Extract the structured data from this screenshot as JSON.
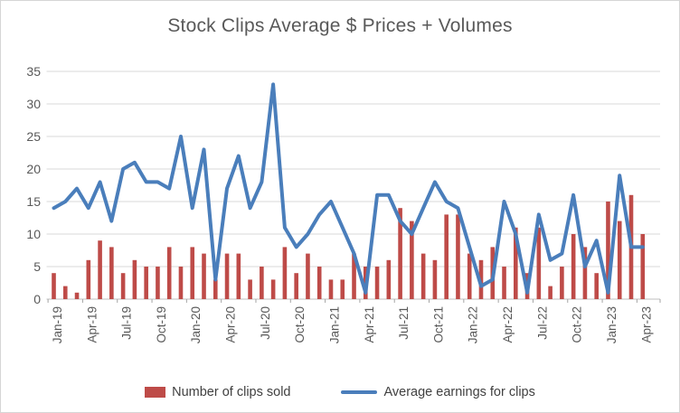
{
  "title": "Stock Clips Average $ Prices + Volumes",
  "colors": {
    "bar": "#be4b48",
    "line": "#4a7ebb",
    "grid": "#d9d9d9",
    "axis": "#bfbfbf",
    "tick": "#a6a6a6",
    "axis_text": "#595959",
    "legend_text": "#404040"
  },
  "legend": {
    "items": [
      {
        "label": "Number of clips sold",
        "swatch": "bar"
      },
      {
        "label": "Average earnings for clips",
        "swatch": "line"
      }
    ]
  },
  "chart_data": {
    "type": "bar+line",
    "title": "Stock Clips Average $ Prices + Volumes",
    "xlabel": "",
    "ylabel": "",
    "ylim": [
      0,
      35
    ],
    "yticks": [
      0,
      5,
      10,
      15,
      20,
      25,
      30,
      35
    ],
    "grid": true,
    "legend_position": "bottom",
    "x_tick_labels": [
      "Jan-19",
      "Apr-19",
      "Jul-19",
      "Oct-19",
      "Jan-20",
      "Apr-20",
      "Jul-20",
      "Oct-20",
      "Jan-21",
      "Apr-21",
      "Jul-21",
      "Oct-21",
      "Jan-22",
      "Apr-22",
      "Jul-22",
      "Oct-22",
      "Jan-23",
      "Apr-23"
    ],
    "categories": [
      "Jan-19",
      "Feb-19",
      "Mar-19",
      "Apr-19",
      "May-19",
      "Jun-19",
      "Jul-19",
      "Aug-19",
      "Sep-19",
      "Oct-19",
      "Nov-19",
      "Dec-19",
      "Jan-20",
      "Feb-20",
      "Mar-20",
      "Apr-20",
      "May-20",
      "Jun-20",
      "Jul-20",
      "Aug-20",
      "Sep-20",
      "Oct-20",
      "Nov-20",
      "Dec-20",
      "Jan-21",
      "Feb-21",
      "Mar-21",
      "Apr-21",
      "May-21",
      "Jun-21",
      "Jul-21",
      "Aug-21",
      "Sep-21",
      "Oct-21",
      "Nov-21",
      "Dec-21",
      "Jan-22",
      "Feb-22",
      "Mar-22",
      "Apr-22",
      "May-22",
      "Jun-22",
      "Jul-22",
      "Aug-22",
      "Sep-22",
      "Oct-22",
      "Nov-22",
      "Dec-22",
      "Jan-23",
      "Feb-23",
      "Mar-23",
      "Apr-23"
    ],
    "series": [
      {
        "name": "Number of clips sold",
        "type": "bar",
        "values": [
          4,
          2,
          1,
          6,
          9,
          8,
          4,
          6,
          5,
          5,
          8,
          5,
          8,
          7,
          3,
          7,
          7,
          3,
          5,
          3,
          8,
          4,
          7,
          5,
          3,
          3,
          7,
          5,
          5,
          6,
          14,
          12,
          7,
          6,
          13,
          13,
          7,
          6,
          8,
          5,
          11,
          4,
          11,
          2,
          5,
          10,
          8,
          4,
          15,
          12,
          16,
          10
        ]
      },
      {
        "name": "Average earnings for clips",
        "type": "line",
        "values": [
          14,
          15,
          17,
          14,
          18,
          12,
          20,
          21,
          18,
          18,
          17,
          25,
          14,
          23,
          3,
          17,
          22,
          14,
          18,
          33,
          11,
          8,
          10,
          13,
          15,
          11,
          7,
          1,
          16,
          16,
          12,
          10,
          14,
          18,
          15,
          14,
          8,
          2,
          3,
          15,
          10,
          1,
          13,
          6,
          7,
          16,
          5,
          9,
          1,
          19,
          8,
          8
        ]
      }
    ]
  }
}
